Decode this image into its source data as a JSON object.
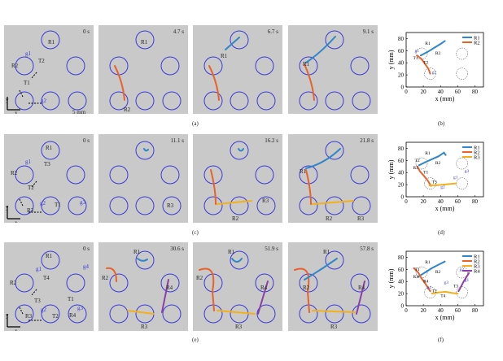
{
  "rows": [
    {
      "label": "(a)",
      "plot_label": "(b)",
      "frames": [
        {
          "time": "0 s",
          "annotations": [
            {
              "text": "R1"
            },
            {
              "text": "R2"
            },
            {
              "text": "g1"
            },
            {
              "text": "g2"
            },
            {
              "text": "T1"
            },
            {
              "text": "T2"
            },
            {
              "text": "5 mm"
            },
            {
              "text": "y"
            },
            {
              "text": "x"
            }
          ]
        },
        {
          "time": "4.7 s",
          "annotations": [
            {
              "text": "R1"
            },
            {
              "text": "R2"
            }
          ]
        },
        {
          "time": "6.7 s",
          "annotations": [
            {
              "text": "R1"
            }
          ]
        },
        {
          "time": "9.1 s",
          "annotations": [
            {
              "text": "R1"
            }
          ]
        }
      ]
    },
    {
      "label": "(c)",
      "plot_label": "(d)",
      "frames": [
        {
          "time": "0 s",
          "annotations": [
            {
              "text": "R1"
            },
            {
              "text": "R2"
            },
            {
              "text": "R3"
            },
            {
              "text": "g1"
            },
            {
              "text": "g2"
            },
            {
              "text": "g3"
            },
            {
              "text": "T1"
            },
            {
              "text": "T2"
            },
            {
              "text": "T3"
            },
            {
              "text": "y"
            },
            {
              "text": "x"
            }
          ]
        },
        {
          "time": "11.1 s",
          "annotations": [
            {
              "text": "R3"
            }
          ]
        },
        {
          "time": "16.2 s",
          "annotations": [
            {
              "text": "R2"
            },
            {
              "text": "R3"
            }
          ]
        },
        {
          "time": "21.8 s",
          "annotations": [
            {
              "text": "R1"
            },
            {
              "text": "R2"
            },
            {
              "text": "R3"
            }
          ]
        }
      ]
    },
    {
      "label": "(e)",
      "plot_label": "(f)",
      "frames": [
        {
          "time": "0 s",
          "annotations": [
            {
              "text": "R1"
            },
            {
              "text": "R2"
            },
            {
              "text": "R3"
            },
            {
              "text": "R4"
            },
            {
              "text": "g1"
            },
            {
              "text": "g2"
            },
            {
              "text": "g3"
            },
            {
              "text": "g4"
            },
            {
              "text": "T1"
            },
            {
              "text": "T2"
            },
            {
              "text": "T3"
            },
            {
              "text": "T4"
            },
            {
              "text": "y"
            },
            {
              "text": "x"
            }
          ]
        },
        {
          "time": "30.6 s",
          "annotations": [
            {
              "text": "R1"
            },
            {
              "text": "R2"
            },
            {
              "text": "R3"
            },
            {
              "text": "R4"
            }
          ]
        },
        {
          "time": "51.9 s",
          "annotations": [
            {
              "text": "R1"
            },
            {
              "text": "R2"
            },
            {
              "text": "R3"
            },
            {
              "text": "R4"
            }
          ]
        },
        {
          "time": "57.8 s",
          "annotations": [
            {
              "text": "R1"
            },
            {
              "text": "R2"
            },
            {
              "text": "R3"
            },
            {
              "text": "R4"
            }
          ]
        }
      ]
    }
  ],
  "colors": {
    "R1": "#2f86c8",
    "R2": "#e8622a",
    "R3": "#f2b11c",
    "R4": "#8d3fa8",
    "circle": "#3a3ad8",
    "frame_bg": "#c9c9c9"
  },
  "chart_data": [
    {
      "type": "line",
      "panel": "(b)",
      "xlabel": "x (mm)",
      "ylabel": "y (mm)",
      "xlim": [
        0,
        90
      ],
      "ylim": [
        0,
        90
      ],
      "xticks": [
        0,
        20,
        40,
        60,
        80
      ],
      "yticks": [
        0,
        20,
        40,
        60,
        80
      ],
      "legend": [
        "R1",
        "R2"
      ],
      "legend_position": "top-right",
      "series": [
        {
          "name": "R1",
          "x": [
            17,
            25,
            33,
            41,
            45
          ],
          "y": [
            52,
            58,
            65,
            72,
            76
          ]
        },
        {
          "name": "R2",
          "x": [
            13,
            18,
            22,
            26,
            28
          ],
          "y": [
            52,
            46,
            38,
            30,
            22
          ]
        }
      ],
      "annotations": [
        "R1",
        "R2",
        "T1",
        "T2",
        "g1",
        "g2"
      ]
    },
    {
      "type": "line",
      "panel": "(d)",
      "xlabel": "x (mm)",
      "ylabel": "y (mm)",
      "xlim": [
        0,
        90
      ],
      "ylim": [
        0,
        90
      ],
      "xticks": [
        0,
        20,
        40,
        60,
        80
      ],
      "yticks": [
        0,
        20,
        40,
        60,
        80
      ],
      "legend": [
        "R1",
        "R2",
        "R3"
      ],
      "legend_position": "top-right",
      "series": [
        {
          "name": "R1",
          "x": [
            15,
            22,
            30,
            38,
            44,
            46
          ],
          "y": [
            52,
            57,
            62,
            67,
            73,
            69
          ]
        },
        {
          "name": "R2",
          "x": [
            13,
            16,
            21,
            25,
            29
          ],
          "y": [
            50,
            42,
            34,
            27,
            18
          ]
        },
        {
          "name": "R3",
          "x": [
            27,
            35,
            43,
            50,
            58
          ],
          "y": [
            19,
            19,
            20,
            21,
            22
          ]
        }
      ],
      "annotations": [
        "R1",
        "R2",
        "R3",
        "T1",
        "T2",
        "T3",
        "g1",
        "g2",
        "g3"
      ]
    },
    {
      "type": "line",
      "panel": "(f)",
      "xlabel": "x (mm)",
      "ylabel": "y (mm)",
      "xlim": [
        0,
        90
      ],
      "ylim": [
        0,
        90
      ],
      "xticks": [
        0,
        20,
        40,
        60,
        80
      ],
      "yticks": [
        0,
        20,
        40,
        60,
        80
      ],
      "legend": [
        "R1",
        "R2",
        "R3",
        "R4"
      ],
      "legend_position": "top-right",
      "series": [
        {
          "name": "R1",
          "x": [
            14,
            22,
            30,
            38,
            45
          ],
          "y": [
            48,
            55,
            62,
            68,
            73
          ]
        },
        {
          "name": "R2",
          "x": [
            9,
            14,
            18,
            23,
            28
          ],
          "y": [
            62,
            55,
            45,
            35,
            24
          ]
        },
        {
          "name": "R3",
          "x": [
            30,
            38,
            46,
            54,
            60
          ],
          "y": [
            20,
            22,
            23,
            21,
            20
          ]
        },
        {
          "name": "R4",
          "x": [
            61,
            64,
            67,
            70,
            73
          ],
          "y": [
            24,
            32,
            40,
            47,
            54
          ]
        }
      ],
      "annotations": [
        "R1",
        "R2",
        "R3",
        "R4",
        "T1",
        "T2",
        "T3",
        "T4",
        "g1",
        "g2",
        "g3",
        "g4"
      ]
    }
  ]
}
